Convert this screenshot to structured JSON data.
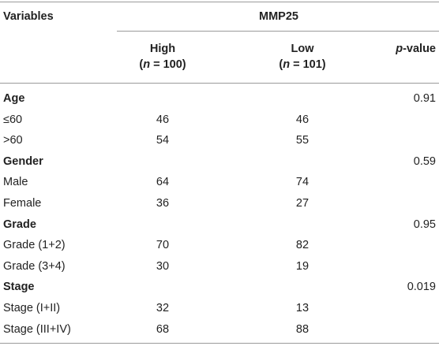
{
  "header": {
    "variables_label": "Variables",
    "group_label": "MMP25",
    "high_label": "High",
    "high_n": "(n = 100)",
    "low_label": "Low",
    "low_n": "(n = 101)",
    "p_label_italic": "p",
    "p_label_rest": "-value"
  },
  "rows": [
    {
      "label": "Age",
      "high": "",
      "low": "",
      "p": "0.91",
      "category": true
    },
    {
      "label": "≤60",
      "high": "46",
      "low": "46",
      "p": "",
      "category": false
    },
    {
      "label": ">60",
      "high": "54",
      "low": "55",
      "p": "",
      "category": false
    },
    {
      "label": "Gender",
      "high": "",
      "low": "",
      "p": "0.59",
      "category": true
    },
    {
      "label": "Male",
      "high": "64",
      "low": "74",
      "p": "",
      "category": false
    },
    {
      "label": "Female",
      "high": "36",
      "low": "27",
      "p": "",
      "category": false
    },
    {
      "label": "Grade",
      "high": "",
      "low": "",
      "p": "0.95",
      "category": true
    },
    {
      "label": "Grade (1+2)",
      "high": "70",
      "low": "82",
      "p": "",
      "category": false
    },
    {
      "label": "Grade (3+4)",
      "high": "30",
      "low": "19",
      "p": "",
      "category": false
    },
    {
      "label": "Stage",
      "high": "",
      "low": "",
      "p": "0.019",
      "category": true
    },
    {
      "label": "Stage (I+II)",
      "high": "32",
      "low": "13",
      "p": "",
      "category": false
    },
    {
      "label": "Stage (III+IV)",
      "high": "68",
      "low": "88",
      "p": "",
      "category": false
    }
  ]
}
